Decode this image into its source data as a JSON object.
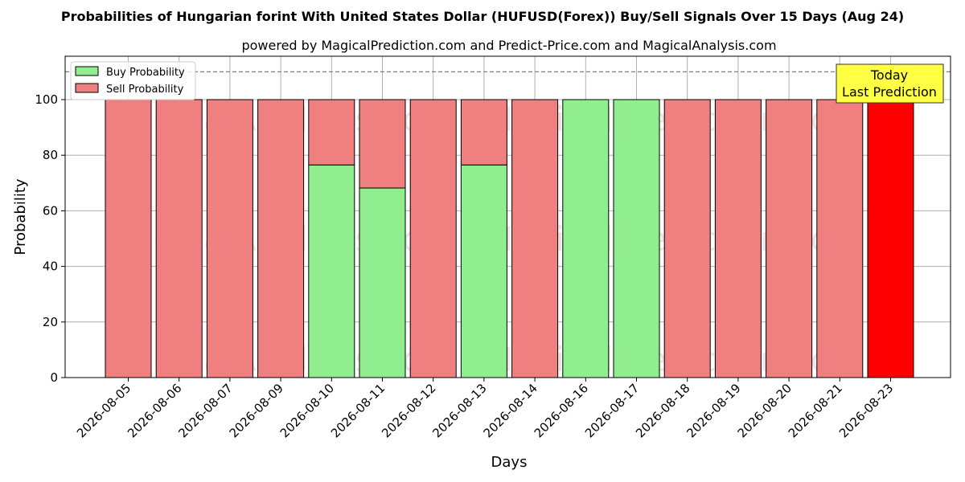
{
  "chart_data": {
    "type": "bar",
    "title": "Probabilities of Hungarian forint With United States Dollar (HUFUSD(Forex)) Buy/Sell Signals Over 15 Days (Aug 24)",
    "subtitle": "powered by MagicalPrediction.com and Predict-Price.com and MagicalAnalysis.com",
    "xlabel": "Days",
    "ylabel": "Probability",
    "ylim": [
      0,
      115
    ],
    "yticks": [
      0,
      20,
      40,
      60,
      80,
      100
    ],
    "grid": true,
    "reference_line": 110,
    "categories": [
      "2026-08-05",
      "2026-08-06",
      "2026-08-07",
      "2026-08-09",
      "2026-08-10",
      "2026-08-11",
      "2026-08-12",
      "2026-08-13",
      "2026-08-14",
      "2026-08-16",
      "2026-08-17",
      "2026-08-18",
      "2026-08-19",
      "2026-08-20",
      "2026-08-21",
      "2026-08-23"
    ],
    "series": [
      {
        "name": "Buy Probability",
        "color": "#90ee90",
        "values": [
          0,
          0,
          0,
          0,
          76.5,
          68.2,
          0,
          76.5,
          0,
          100,
          100,
          0,
          0,
          0,
          0,
          0
        ]
      },
      {
        "name": "Sell Probability",
        "color": "#f08080",
        "values": [
          100,
          100,
          100,
          100,
          23.5,
          31.8,
          100,
          23.5,
          100,
          0,
          0,
          100,
          100,
          100,
          100,
          100
        ]
      }
    ],
    "highlight": {
      "index": 15,
      "color": "#ff0000"
    },
    "legend_position": "top-left",
    "annotation": {
      "line1": "Today",
      "line2": "Last Prediction",
      "color": "#ffff44"
    },
    "watermarks": [
      "MagicalAnalysis.com",
      "MagicalPrediction.com"
    ]
  }
}
